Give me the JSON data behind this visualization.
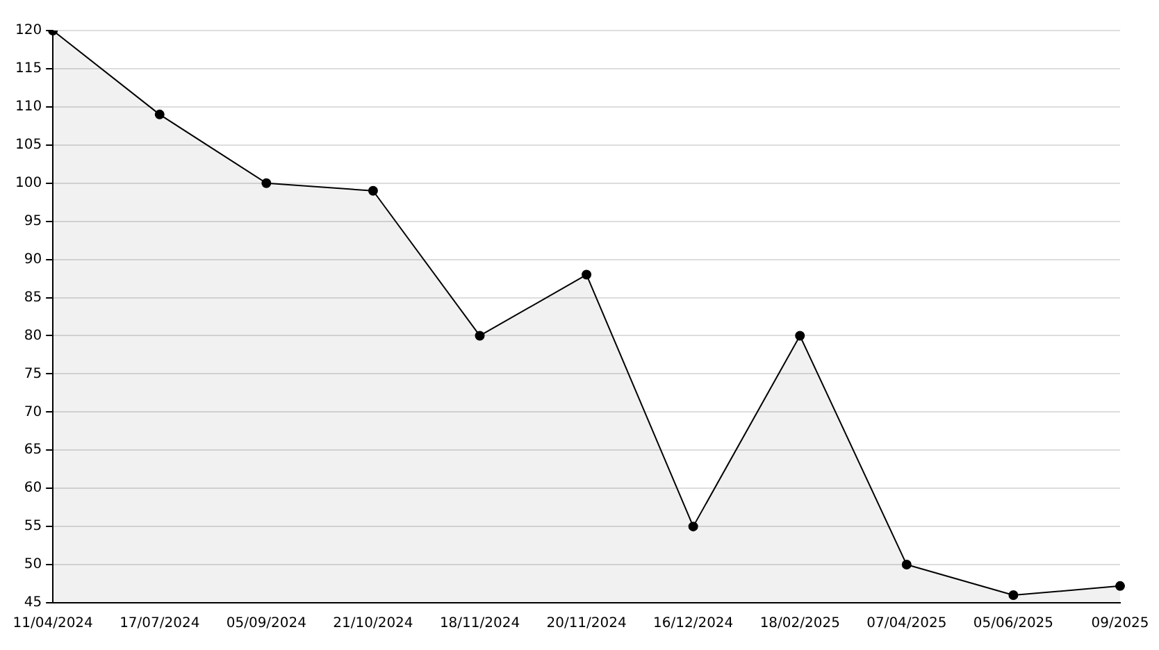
{
  "chart_data": {
    "type": "area",
    "categories": [
      "11/04/2024",
      "17/07/2024",
      "05/09/2024",
      "21/10/2024",
      "18/11/2024",
      "20/11/2024",
      "16/12/2024",
      "18/02/2025",
      "07/04/2025",
      "05/06/2025",
      "09/2025"
    ],
    "series": [
      {
        "color": "#000000",
        "values": [
          120,
          109,
          100,
          99,
          80,
          88,
          55,
          80,
          50,
          46,
          47.2
        ]
      }
    ],
    "ylim": [
      45,
      120
    ],
    "yticks": [
      45,
      50,
      55,
      60,
      65,
      70,
      75,
      80,
      85,
      90,
      95,
      100,
      105,
      110,
      115,
      120
    ],
    "grid": "y",
    "legend": false,
    "marker": "circle",
    "line_style": "solid"
  }
}
